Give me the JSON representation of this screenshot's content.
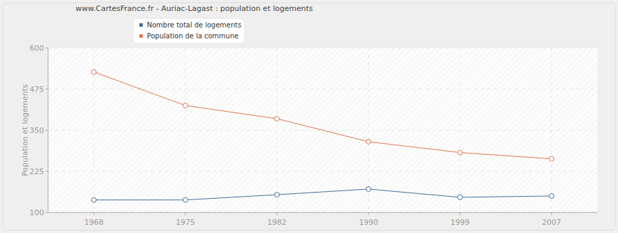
{
  "chart_data": {
    "type": "line",
    "title": "www.CartesFrance.fr - Auriac-Lagast : population et logements",
    "y_label": "Population et logements",
    "categories": [
      "1968",
      "1975",
      "1982",
      "1990",
      "1999",
      "2007"
    ],
    "series": [
      {
        "name": "Nombre total de logements",
        "color": "#3e6d9c",
        "marker": "circle",
        "values": [
          138,
          138,
          154,
          171,
          146,
          150
        ]
      },
      {
        "name": "Population de la commune",
        "color": "#e0734a",
        "marker": "circle",
        "values": [
          527,
          425,
          385,
          315,
          282,
          263
        ]
      }
    ],
    "ylim": [
      100,
      600
    ],
    "yticks": [
      100,
      225,
      350,
      475,
      600
    ],
    "grid": true,
    "legend": "top"
  }
}
